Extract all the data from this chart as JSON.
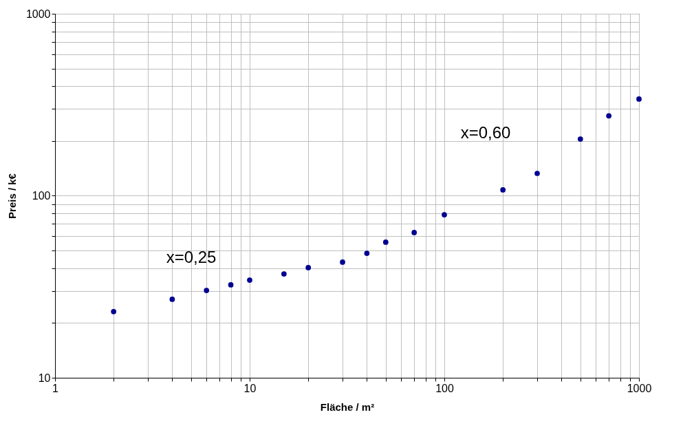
{
  "chart_data": {
    "type": "scatter",
    "xlabel": "Fläche / m²",
    "ylabel": "Preis / k€",
    "log": "xy",
    "grid": true,
    "marker": "circle",
    "legend": false,
    "x": [
      2,
      4,
      6,
      8,
      10,
      15,
      20,
      30,
      40,
      50,
      70,
      100,
      200,
      300,
      500,
      700,
      1000
    ],
    "series": [
      {
        "color": "#000090",
        "values": [
          23.1,
          27.0,
          30.2,
          32.4,
          34.4,
          37.2,
          40.3,
          43.2,
          48.3,
          55.6,
          62.8,
          78.7,
          107.7,
          132.7,
          205,
          275,
          340
        ]
      }
    ],
    "xlim": [
      1,
      1000
    ],
    "ylim": [
      10,
      1000
    ],
    "xticks": [
      1,
      {
        "value": 2,
        "label": null
      },
      {
        "value": 3,
        "label": null
      },
      {
        "value": 4,
        "label": null
      },
      {
        "value": 5,
        "label": null
      },
      {
        "value": 6,
        "label": null
      },
      {
        "value": 7,
        "label": null
      },
      {
        "value": 8,
        "label": null
      },
      {
        "value": 9,
        "label": null
      },
      10,
      {
        "value": 20,
        "label": null
      },
      {
        "value": 30,
        "label": null
      },
      {
        "value": 40,
        "label": null
      },
      {
        "value": 50,
        "label": null
      },
      {
        "value": 60,
        "label": null
      },
      {
        "value": 70,
        "label": null
      },
      {
        "value": 80,
        "label": null
      },
      {
        "value": 90,
        "label": null
      },
      100,
      {
        "value": 200,
        "label": null
      },
      {
        "value": 300,
        "label": null
      },
      {
        "value": 400,
        "label": null
      },
      {
        "value": 500,
        "label": null
      },
      {
        "value": 600,
        "label": null
      },
      {
        "value": 700,
        "label": null
      },
      {
        "value": 800,
        "label": null
      },
      {
        "value": 900,
        "label": null
      },
      1000
    ],
    "yticks": [
      10,
      {
        "value": 20,
        "label": null
      },
      {
        "value": 30,
        "label": null
      },
      {
        "value": 40,
        "label": null
      },
      {
        "value": 50,
        "label": null
      },
      {
        "value": 60,
        "label": null
      },
      {
        "value": 70,
        "label": null
      },
      {
        "value": 80,
        "label": null
      },
      {
        "value": 90,
        "label": null
      },
      100,
      {
        "value": 200,
        "label": null
      },
      {
        "value": 300,
        "label": null
      },
      {
        "value": 400,
        "label": null
      },
      {
        "value": 500,
        "label": null
      },
      {
        "value": 600,
        "label": null
      },
      {
        "value": 700,
        "label": null
      },
      {
        "value": 800,
        "label": null
      },
      {
        "value": 900,
        "label": null
      },
      1000
    ],
    "annotations": [
      "x=0,25",
      "x=0,60"
    ]
  }
}
